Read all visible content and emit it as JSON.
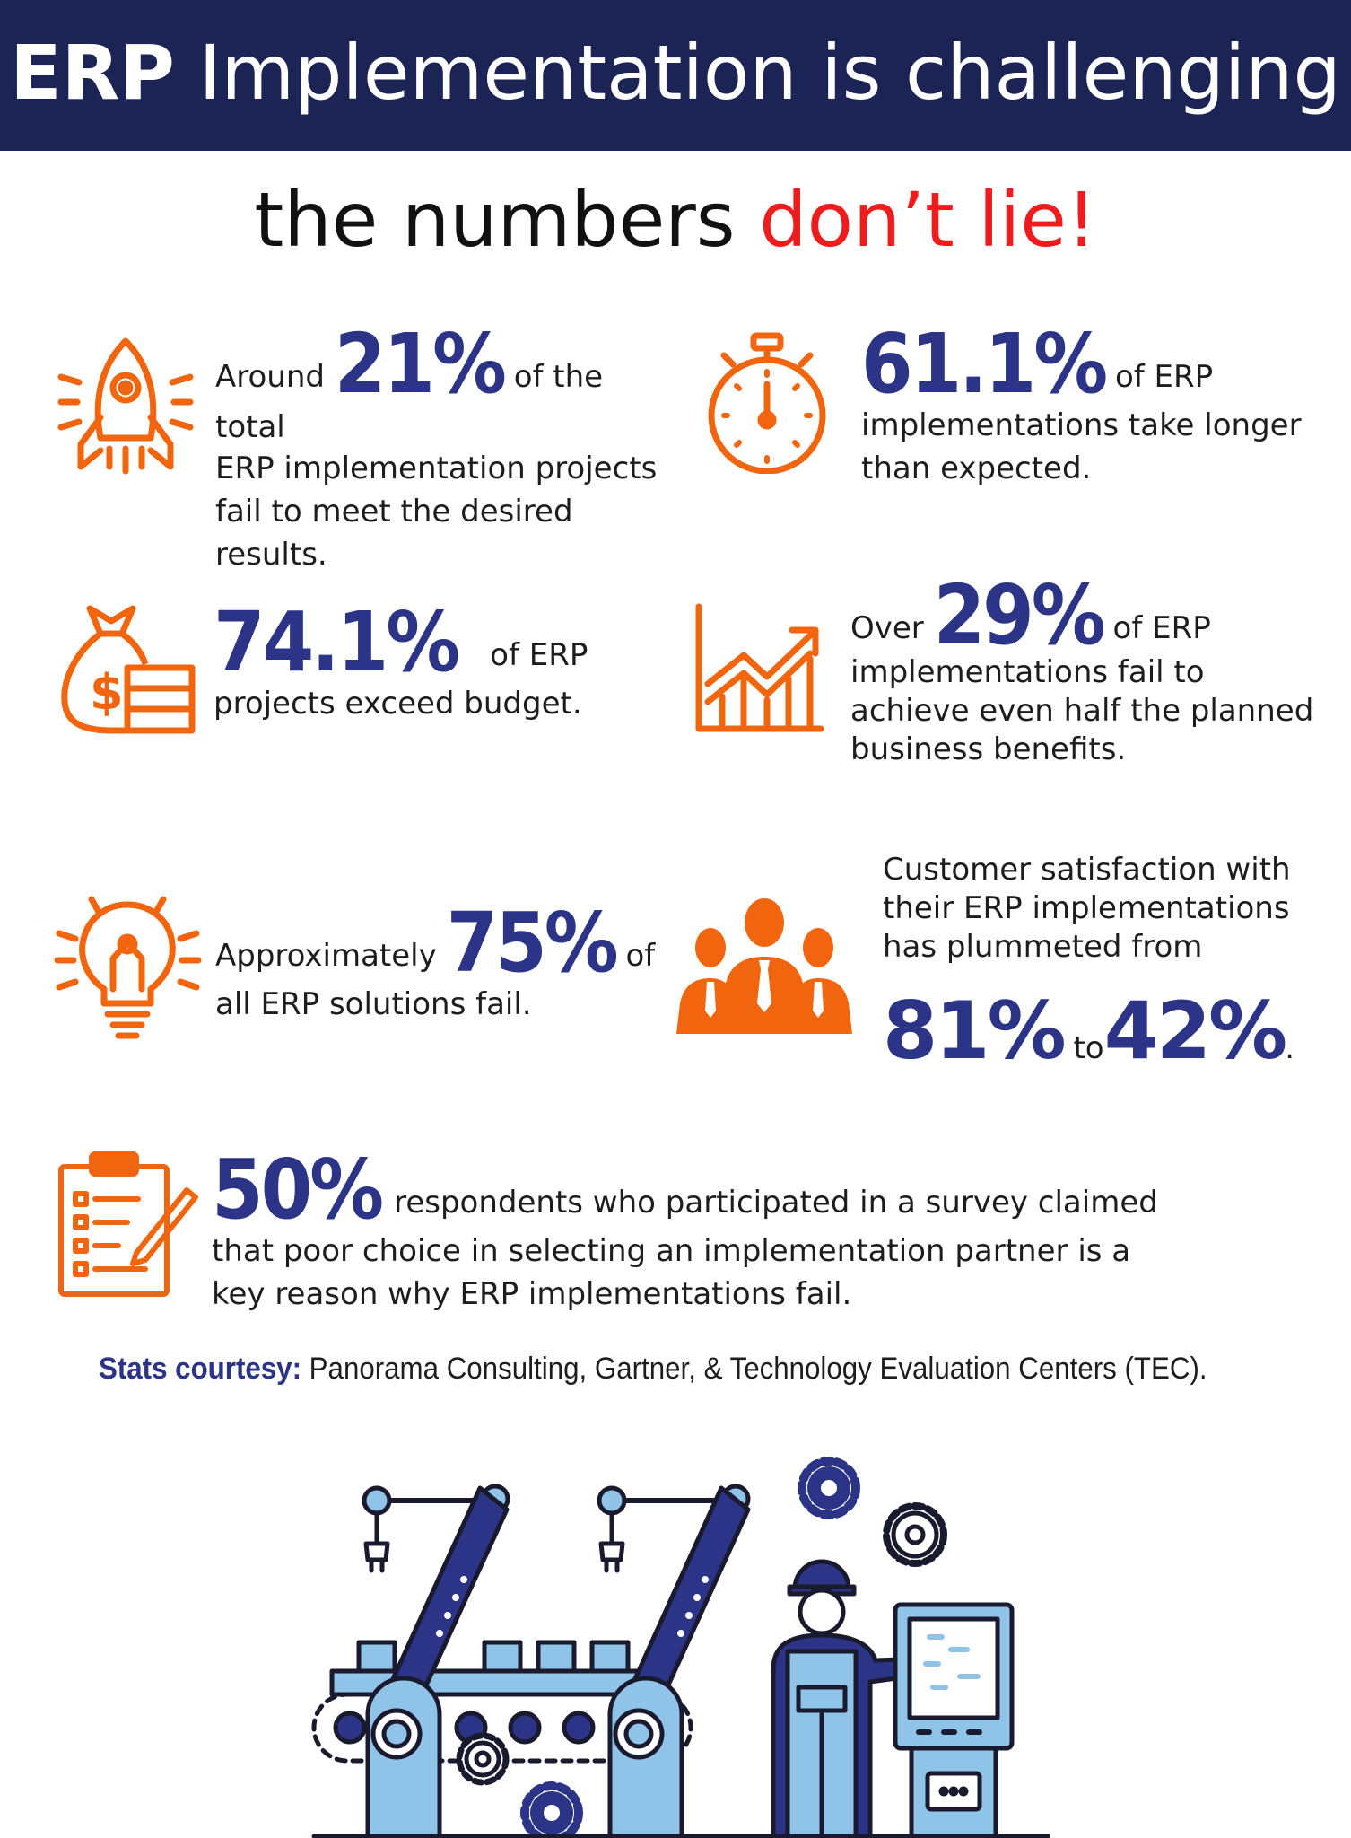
{
  "header": {
    "title_bold": "ERP",
    "title_rest": " Implementation is challenging"
  },
  "subtitle": {
    "text": "the numbers ",
    "highlight": "don’t lie!"
  },
  "colors": {
    "navy": "#1c2456",
    "accent_orange": "#f2650f",
    "stat_blue": "#2b3486",
    "highlight_red": "#ee1c1c"
  },
  "stats": [
    {
      "icon": "rocket-icon",
      "pre": "Around ",
      "value": "21%",
      "post": " of the total",
      "body": "ERP implementation projects fail to meet the desired results."
    },
    {
      "icon": "stopwatch-icon",
      "pre": "",
      "value": "61.1%",
      "post": " of ERP",
      "body": "implementations take longer than expected."
    },
    {
      "icon": "money-bag-icon",
      "pre": "",
      "value": "74.1%",
      "post": "of ERP",
      "body": "projects exceed budget."
    },
    {
      "icon": "growth-chart-icon",
      "pre": "Over ",
      "value": "29%",
      "post": " of ERP",
      "body": "implementations fail to achieve even half the planned business benefits."
    },
    {
      "icon": "lightbulb-icon",
      "pre": "Approximately ",
      "value": "75%",
      "post": " of",
      "body": "all ERP solutions fail."
    },
    {
      "icon": "people-icon",
      "pre": "Customer satisfaction with their ERP implementations has plummeted from",
      "value_from": "81%",
      "to": "to",
      "value_to": "42%",
      "end": "."
    },
    {
      "icon": "clipboard-checklist-icon",
      "pre": "",
      "value": "50%",
      "post": "respondents who participated in a survey claimed",
      "body": "that poor choice in selecting an implementation partner is a key reason why ERP implementations fail."
    }
  ],
  "footer": {
    "label": "Stats courtesy:",
    "sources": " Panorama Consulting, Gartner, & Technology Evaluation Centers (TEC)."
  },
  "illustration": {
    "icon": "factory-robot-arms-worker-icon"
  }
}
